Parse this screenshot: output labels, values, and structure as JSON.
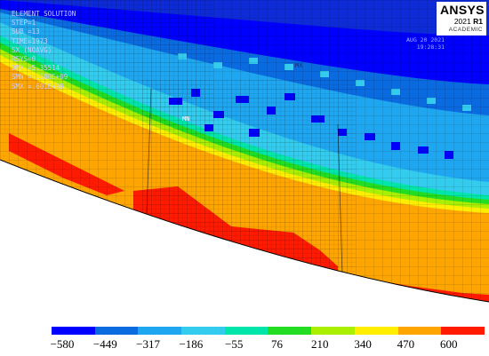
{
  "info_lines": [
    "ELEMENT SOLUTION",
    "STEP=1",
    "SUB =13",
    "TIME=1973",
    "SX       (NOAVG)",
    "RSYS=0",
    "DMX =5.35514",
    "SMN =-.580E+09",
    "SMX =.601E+09"
  ],
  "corner_lines": [
    "AUG 20 2021",
    "19:28:31"
  ],
  "extreme_labels": {
    "max": "MX",
    "min": "MN"
  },
  "logo": {
    "brand": "ANSYS",
    "year": "2021",
    "release": "R1",
    "edition": "ACADEMIC"
  },
  "legend": {
    "colors": [
      "#0000ff",
      "#0a6ae0",
      "#1fa6f0",
      "#33ccee",
      "#00e6aa",
      "#22dd22",
      "#aaee00",
      "#ffee00",
      "#ffa500",
      "#ff1a00"
    ],
    "ticks": [
      "−580",
      "−449",
      "−317",
      "−186",
      "−55",
      "76",
      "210",
      "340",
      "470",
      "600"
    ]
  }
}
